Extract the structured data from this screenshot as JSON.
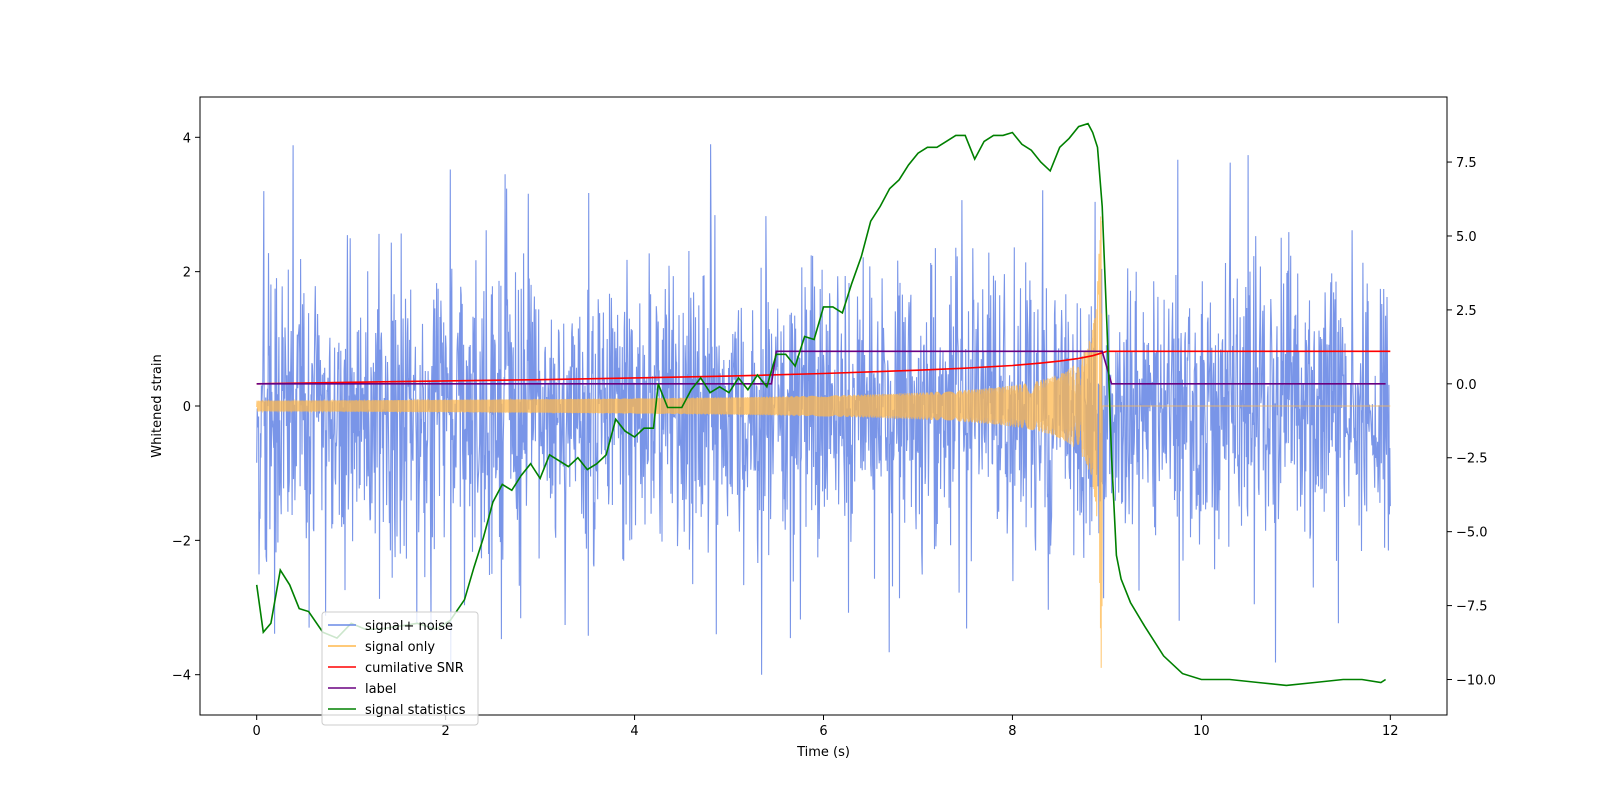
{
  "chart_data": {
    "type": "line",
    "title": "",
    "xlabel": "Time (s)",
    "ylabel": "Whitened strain",
    "y2label": "",
    "xlim": [
      -0.6,
      12.6
    ],
    "ylim": [
      -4.6,
      4.6
    ],
    "y2lim": [
      -11.2,
      9.7
    ],
    "x_ticks": [
      0,
      2,
      4,
      6,
      8,
      10,
      12
    ],
    "x_tick_labels": [
      "0",
      "2",
      "4",
      "6",
      "8",
      "10",
      "12"
    ],
    "y_ticks": [
      -4,
      -2,
      0,
      2,
      4
    ],
    "y_tick_labels": [
      "−4",
      "−2",
      "0",
      "2",
      "4"
    ],
    "y2_ticks": [
      -10,
      -7.5,
      -5,
      -2.5,
      0,
      2.5,
      5,
      7.5
    ],
    "y2_tick_labels": [
      "−10.0",
      "−7.5",
      "−5.0",
      "−2.5",
      "0.0",
      "2.5",
      "5.0",
      "7.5"
    ],
    "grid": false,
    "legend_position": "lower-left",
    "series": [
      {
        "name": "signal+ noise",
        "color": "#6a8ae6",
        "axis": "left",
        "kind": "noise",
        "x_range": [
          0,
          12
        ],
        "noise_envelope": [
          -2.6,
          1.9
        ],
        "spike_max": 3.9,
        "spike_min": -4.0
      },
      {
        "name": "signal only",
        "color": "#ffb84d",
        "axis": "left",
        "kind": "chirp",
        "x_range": [
          0,
          12
        ],
        "merger_time": 8.95,
        "amplitude_start": 0.08,
        "amplitude_peak": 3.9
      },
      {
        "name": "cumilative SNR",
        "color": "#ff0000",
        "axis": "right",
        "x": [
          0,
          1,
          2,
          3,
          4,
          5,
          6,
          7,
          7.5,
          8,
          8.3,
          8.5,
          8.7,
          8.85,
          8.95,
          9.0,
          12
        ],
        "y": [
          0.0,
          0.05,
          0.1,
          0.14,
          0.2,
          0.26,
          0.35,
          0.46,
          0.53,
          0.62,
          0.7,
          0.77,
          0.86,
          0.95,
          1.05,
          1.1,
          1.1
        ]
      },
      {
        "name": "label",
        "color": "#6a0080",
        "axis": "right",
        "x": [
          0,
          5.45,
          5.5,
          8.95,
          9.05,
          11.95
        ],
        "y": [
          0.0,
          0.0,
          1.1,
          1.1,
          0.0,
          0.0
        ]
      },
      {
        "name": "signal statistics",
        "color": "#008000",
        "axis": "right",
        "x": [
          0,
          0.07,
          0.15,
          0.25,
          0.35,
          0.45,
          0.55,
          0.7,
          0.85,
          1.0,
          1.15,
          1.3,
          1.5,
          1.7,
          1.9,
          2.05,
          2.2,
          2.3,
          2.4,
          2.5,
          2.6,
          2.7,
          2.8,
          2.9,
          3.0,
          3.1,
          3.2,
          3.3,
          3.4,
          3.5,
          3.6,
          3.7,
          3.8,
          3.9,
          4.0,
          4.1,
          4.2,
          4.25,
          4.35,
          4.5,
          4.6,
          4.7,
          4.8,
          4.9,
          5.0,
          5.1,
          5.2,
          5.3,
          5.4,
          5.5,
          5.6,
          5.7,
          5.8,
          5.9,
          6.0,
          6.1,
          6.2,
          6.3,
          6.4,
          6.5,
          6.6,
          6.7,
          6.8,
          6.9,
          7.0,
          7.1,
          7.2,
          7.3,
          7.4,
          7.5,
          7.6,
          7.7,
          7.8,
          7.9,
          8.0,
          8.1,
          8.2,
          8.3,
          8.4,
          8.5,
          8.6,
          8.7,
          8.8,
          8.85,
          8.9,
          8.95,
          9.0,
          9.05,
          9.1,
          9.15,
          9.25,
          9.4,
          9.6,
          9.8,
          10.0,
          10.3,
          10.6,
          10.9,
          11.2,
          11.5,
          11.7,
          11.9,
          11.95
        ],
        "y": [
          -6.8,
          -8.4,
          -8.1,
          -6.3,
          -6.8,
          -7.6,
          -7.7,
          -8.4,
          -8.6,
          -8.1,
          -8.3,
          -8.3,
          -8.2,
          -8.1,
          -8.3,
          -8.0,
          -7.3,
          -6.2,
          -5.2,
          -4.0,
          -3.4,
          -3.6,
          -3.1,
          -2.7,
          -3.2,
          -2.4,
          -2.6,
          -2.8,
          -2.5,
          -2.9,
          -2.7,
          -2.4,
          -1.2,
          -1.6,
          -1.8,
          -1.5,
          -1.5,
          0.0,
          -0.8,
          -0.8,
          -0.2,
          0.2,
          -0.3,
          -0.1,
          -0.3,
          0.2,
          -0.2,
          0.3,
          -0.1,
          1.0,
          1.0,
          0.6,
          1.6,
          1.5,
          2.6,
          2.6,
          2.4,
          3.4,
          4.3,
          5.5,
          6.0,
          6.6,
          6.9,
          7.4,
          7.8,
          8.0,
          8.0,
          8.2,
          8.4,
          8.4,
          7.6,
          8.2,
          8.4,
          8.4,
          8.5,
          8.1,
          7.9,
          7.5,
          7.2,
          8.0,
          8.3,
          8.7,
          8.8,
          8.5,
          8.0,
          6.0,
          2.0,
          -2.5,
          -5.8,
          -6.6,
          -7.4,
          -8.2,
          -9.2,
          -9.8,
          -10.0,
          -10.0,
          -10.1,
          -10.2,
          -10.1,
          -10.0,
          -10.0,
          -10.1,
          -10.0
        ]
      }
    ]
  }
}
